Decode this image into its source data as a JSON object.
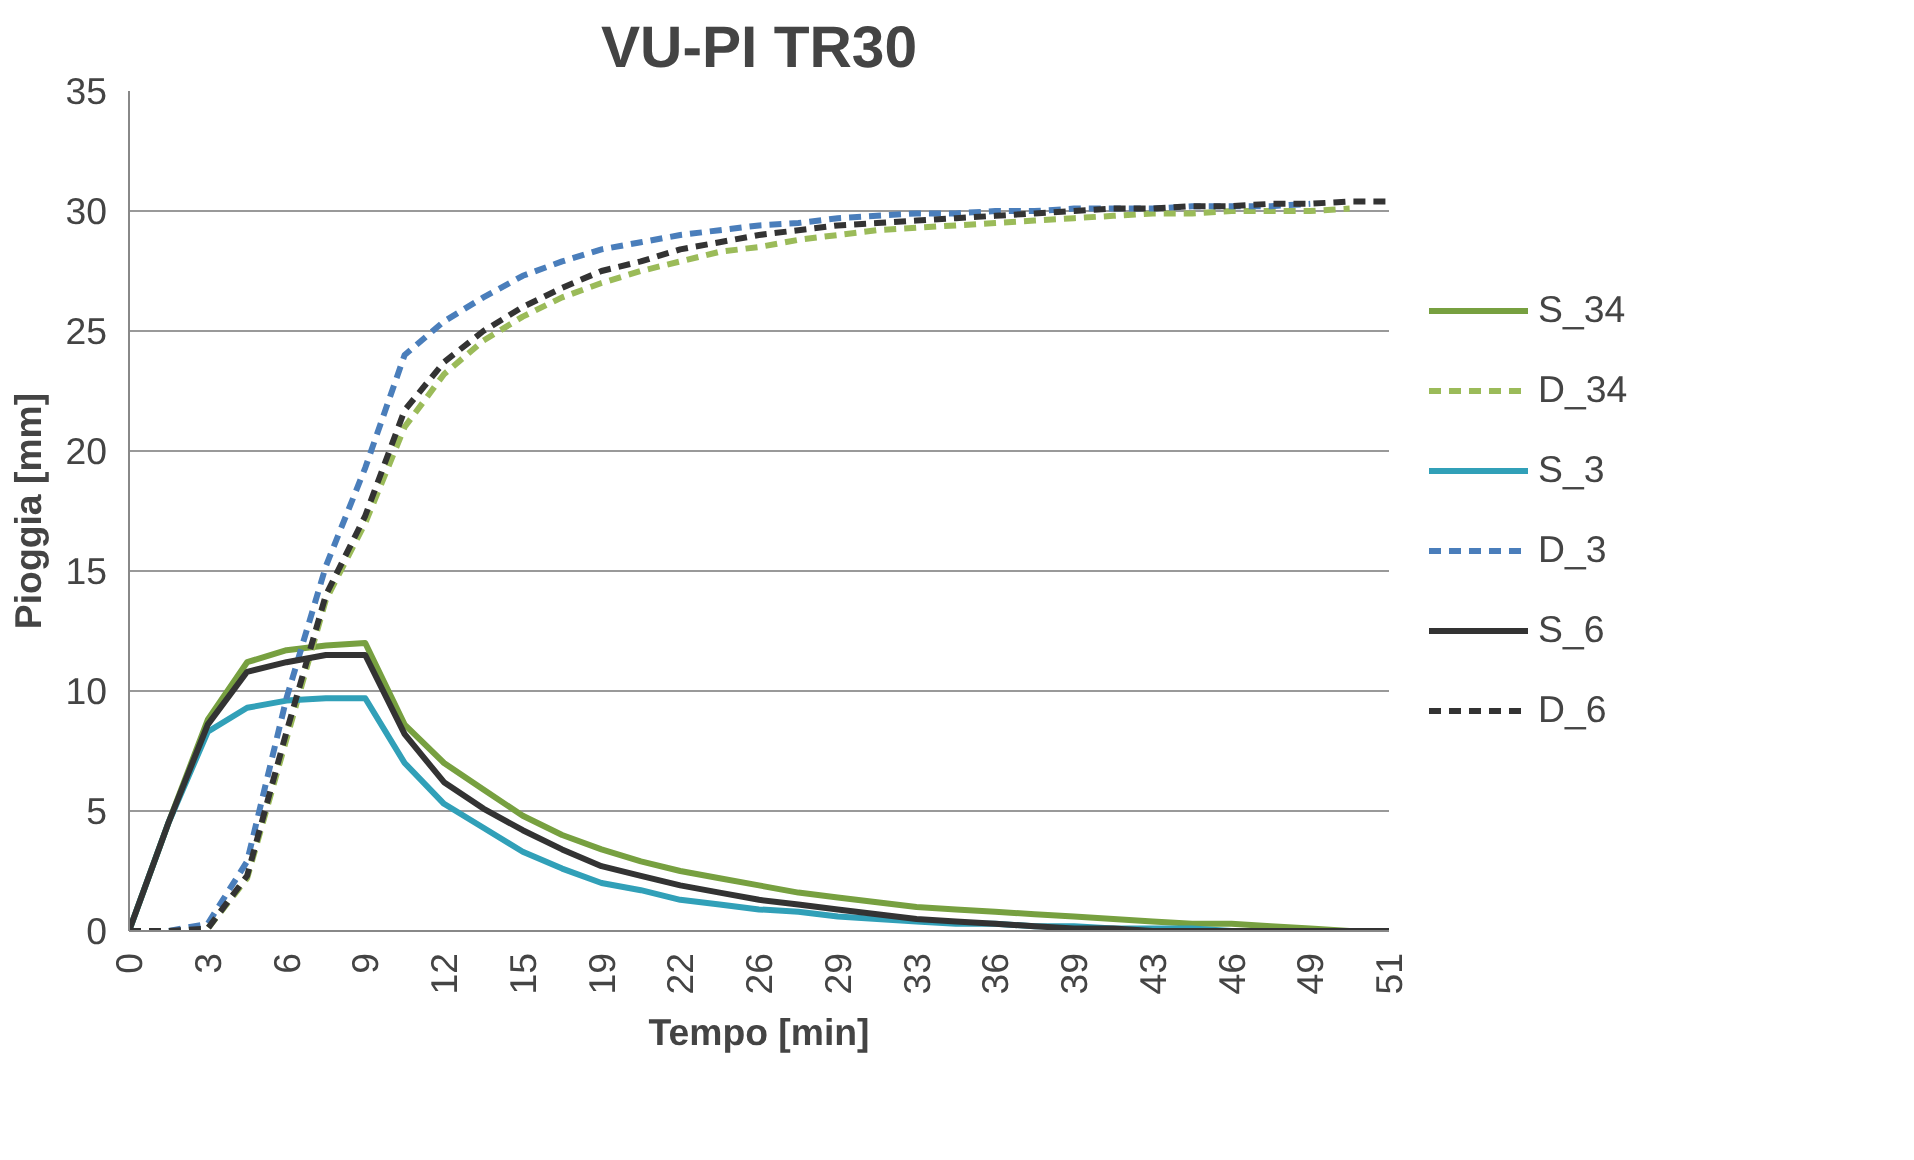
{
  "chart_data": {
    "type": "line",
    "title": "VU-PI TR30",
    "xlabel": "Tempo [min]",
    "ylabel": "Pioggia [mm]",
    "categories": [
      "0",
      null,
      "3",
      null,
      "6",
      null,
      "9",
      null,
      "12",
      null,
      "15",
      null,
      "19",
      null,
      "22",
      null,
      "26",
      null,
      "29",
      null,
      "33",
      null,
      "36",
      null,
      "39",
      null,
      "43",
      null,
      "46",
      null,
      "49",
      null,
      "51"
    ],
    "ylim": [
      0,
      35
    ],
    "yticks": [
      0,
      5,
      10,
      15,
      20,
      25,
      30,
      35
    ],
    "grid": "y",
    "legend": "right",
    "series": [
      {
        "name": "S_34",
        "color": "#77a040",
        "line_style": "solid",
        "values": [
          0,
          4.5,
          8.8,
          11.2,
          11.7,
          11.9,
          12.0,
          8.6,
          7.0,
          5.9,
          4.8,
          4.0,
          3.4,
          2.9,
          2.5,
          2.2,
          1.9,
          1.6,
          1.4,
          1.2,
          1.0,
          0.9,
          0.8,
          0.7,
          0.6,
          0.5,
          0.4,
          0.3,
          0.3,
          0.2,
          0.1,
          0.0,
          null
        ]
      },
      {
        "name": "D_34",
        "color": "#9bbb59",
        "line_style": "dashed",
        "values": [
          0,
          0,
          0.1,
          2.2,
          8.0,
          13.8,
          17.0,
          21.0,
          23.2,
          24.6,
          25.6,
          26.4,
          27.0,
          27.5,
          27.9,
          28.3,
          28.5,
          28.8,
          29.0,
          29.2,
          29.3,
          29.4,
          29.5,
          29.6,
          29.7,
          29.8,
          29.9,
          29.9,
          30.0,
          30.0,
          30.0,
          30.1,
          null
        ]
      },
      {
        "name": "S_3",
        "color": "#31a0b8",
        "line_style": "solid",
        "values": [
          0,
          4.5,
          8.3,
          9.3,
          9.6,
          9.7,
          9.7,
          7.0,
          5.3,
          4.3,
          3.3,
          2.6,
          2.0,
          1.7,
          1.3,
          1.1,
          0.9,
          0.8,
          0.6,
          0.5,
          0.4,
          0.3,
          0.3,
          0.2,
          0.2,
          0.1,
          0.1,
          0.1,
          0.0,
          0.0,
          0.0,
          null,
          null
        ]
      },
      {
        "name": "D_3",
        "color": "#4a7ebb",
        "line_style": "dashed",
        "values": [
          0,
          0,
          0.3,
          2.9,
          9.7,
          15.2,
          19.3,
          24.0,
          25.4,
          26.4,
          27.3,
          27.9,
          28.4,
          28.7,
          29.0,
          29.2,
          29.4,
          29.5,
          29.7,
          29.8,
          29.9,
          29.9,
          30.0,
          30.0,
          30.1,
          30.1,
          30.1,
          30.2,
          30.2,
          30.2,
          30.3,
          null,
          null
        ]
      },
      {
        "name": "S_6",
        "color": "#333333",
        "line_style": "solid",
        "values": [
          0,
          4.5,
          8.6,
          10.8,
          11.2,
          11.5,
          11.5,
          8.2,
          6.2,
          5.1,
          4.2,
          3.4,
          2.7,
          2.3,
          1.9,
          1.6,
          1.3,
          1.1,
          0.9,
          0.7,
          0.5,
          0.4,
          0.3,
          0.2,
          0.1,
          0.1,
          0.0,
          0.0,
          0.0,
          0.0,
          0.0,
          0.0,
          0.0
        ]
      },
      {
        "name": "D_6",
        "color": "#333333",
        "line_style": "dashed",
        "values": [
          0,
          0,
          0.1,
          2.3,
          8.3,
          14.0,
          17.3,
          21.7,
          23.7,
          25.0,
          26.0,
          26.8,
          27.5,
          27.9,
          28.4,
          28.7,
          29.0,
          29.2,
          29.4,
          29.5,
          29.6,
          29.7,
          29.8,
          29.9,
          30.0,
          30.1,
          30.1,
          30.2,
          30.2,
          30.3,
          30.3,
          30.4,
          30.4
        ]
      }
    ]
  }
}
